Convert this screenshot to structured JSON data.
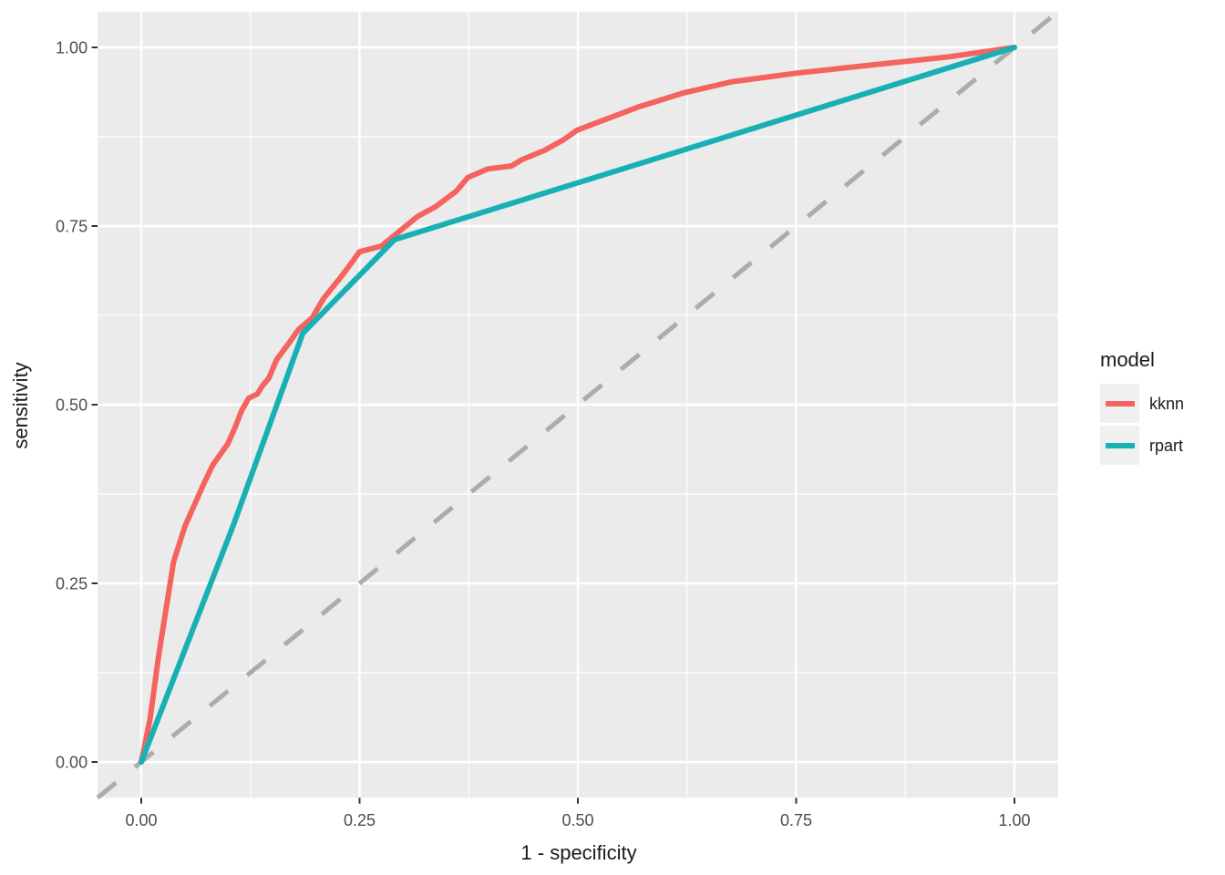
{
  "chart_data": {
    "type": "line",
    "title": "",
    "xlabel": "1 - specificity",
    "ylabel": "sensitivity",
    "xlim": [
      0,
      1
    ],
    "ylim": [
      0,
      1
    ],
    "grid": "major and minor white gridlines on gray panel",
    "panel_bg": "#EBEBEB",
    "grid_color": "#FFFFFF",
    "tick_color": "#333333",
    "axis_text_color": "#4D4D4D",
    "axis_title_color": "#1A1A1A",
    "x_ticks": {
      "values": [
        0,
        0.25,
        0.5,
        0.75,
        1
      ],
      "labels": [
        "0.00",
        "0.25",
        "0.50",
        "0.75",
        "1.00"
      ]
    },
    "y_ticks": {
      "values": [
        0,
        0.25,
        0.5,
        0.75,
        1
      ],
      "labels": [
        "0.00",
        "0.25",
        "0.50",
        "0.75",
        "1.00"
      ]
    },
    "minor_ticks": [
      0.125,
      0.375,
      0.625,
      0.875
    ],
    "reference_line": {
      "type": "abline",
      "slope": 1,
      "intercept": 0,
      "style": "dashed",
      "color": "#ACACAC"
    },
    "series": [
      {
        "name": "kknn",
        "color": "#F4635D",
        "points": [
          [
            0,
            0
          ],
          [
            0.01,
            0.06
          ],
          [
            0.02,
            0.15
          ],
          [
            0.037,
            0.28
          ],
          [
            0.05,
            0.33
          ],
          [
            0.066,
            0.374
          ],
          [
            0.073,
            0.393
          ],
          [
            0.082,
            0.416
          ],
          [
            0.099,
            0.445
          ],
          [
            0.107,
            0.467
          ],
          [
            0.115,
            0.492
          ],
          [
            0.123,
            0.509
          ],
          [
            0.133,
            0.515
          ],
          [
            0.139,
            0.527
          ],
          [
            0.146,
            0.537
          ],
          [
            0.155,
            0.563
          ],
          [
            0.169,
            0.586
          ],
          [
            0.18,
            0.605
          ],
          [
            0.196,
            0.622
          ],
          [
            0.209,
            0.649
          ],
          [
            0.232,
            0.684
          ],
          [
            0.25,
            0.714
          ],
          [
            0.275,
            0.722
          ],
          [
            0.29,
            0.737
          ],
          [
            0.316,
            0.763
          ],
          [
            0.337,
            0.777
          ],
          [
            0.361,
            0.799
          ],
          [
            0.374,
            0.818
          ],
          [
            0.397,
            0.83
          ],
          [
            0.424,
            0.834
          ],
          [
            0.436,
            0.843
          ],
          [
            0.462,
            0.856
          ],
          [
            0.484,
            0.871
          ],
          [
            0.499,
            0.884
          ],
          [
            0.54,
            0.903
          ],
          [
            0.57,
            0.917
          ],
          [
            0.62,
            0.936
          ],
          [
            0.677,
            0.952
          ],
          [
            0.751,
            0.964
          ],
          [
            0.826,
            0.974
          ],
          [
            0.926,
            0.987
          ],
          [
            1,
            1
          ]
        ]
      },
      {
        "name": "rpart",
        "color": "#17B0B5",
        "points": [
          [
            0,
            0
          ],
          [
            0.105,
            0.33
          ],
          [
            0.185,
            0.6
          ],
          [
            0.29,
            0.731
          ],
          [
            1,
            1
          ]
        ]
      }
    ],
    "legend": {
      "title": "model",
      "position": "right",
      "key_bg": "#F0F0F0",
      "entries": [
        "kknn",
        "rpart"
      ]
    }
  }
}
